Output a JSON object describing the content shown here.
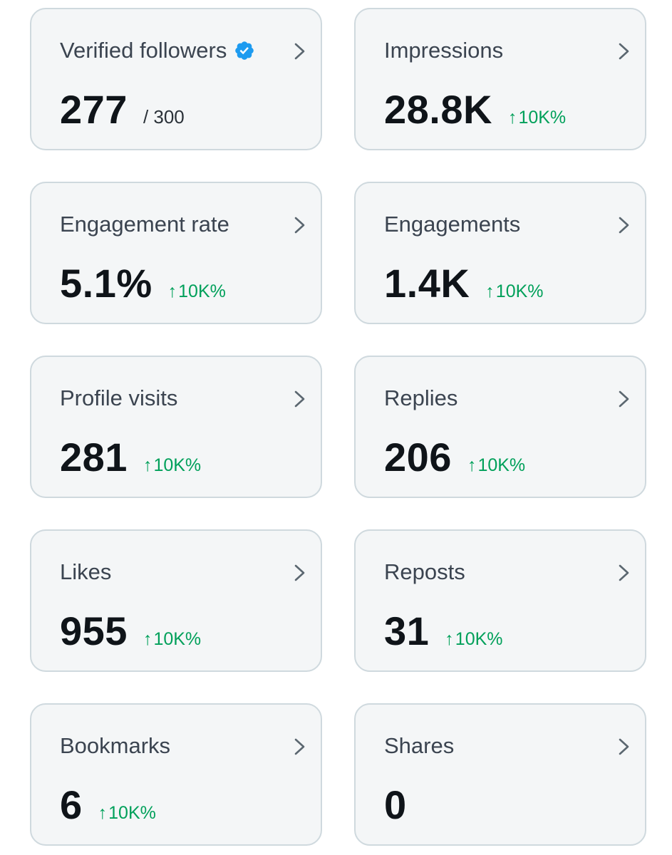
{
  "colors": {
    "card_background": "#f4f6f7",
    "card_border": "#cfd9de",
    "title_text": "#3b4450",
    "value_text": "#0f1419",
    "delta_positive": "#00a05a",
    "verified_badge": "#1d9bf0",
    "chevron": "#5b6770"
  },
  "metrics": [
    {
      "title": "Verified followers",
      "value": "277",
      "sub_total": "/ 300",
      "delta": "",
      "has_verified_badge": true
    },
    {
      "title": "Impressions",
      "value": "28.8K",
      "sub_total": "",
      "delta": "10K%",
      "has_verified_badge": false
    },
    {
      "title": "Engagement rate",
      "value": "5.1%",
      "sub_total": "",
      "delta": "10K%",
      "has_verified_badge": false
    },
    {
      "title": "Engagements",
      "value": "1.4K",
      "sub_total": "",
      "delta": "10K%",
      "has_verified_badge": false
    },
    {
      "title": "Profile visits",
      "value": "281",
      "sub_total": "",
      "delta": "10K%",
      "has_verified_badge": false
    },
    {
      "title": "Replies",
      "value": "206",
      "sub_total": "",
      "delta": "10K%",
      "has_verified_badge": false
    },
    {
      "title": "Likes",
      "value": "955",
      "sub_total": "",
      "delta": "10K%",
      "has_verified_badge": false
    },
    {
      "title": "Reposts",
      "value": "31",
      "sub_total": "",
      "delta": "10K%",
      "has_verified_badge": false
    },
    {
      "title": "Bookmarks",
      "value": "6",
      "sub_total": "",
      "delta": "10K%",
      "has_verified_badge": false
    },
    {
      "title": "Shares",
      "value": "0",
      "sub_total": "",
      "delta": "",
      "has_verified_badge": false
    }
  ],
  "icons": {
    "verified": "verified-badge-icon",
    "chevron": "chevron-right-icon",
    "delta_arrow": "arrow-up-icon",
    "delta_arrow_glyph": "↑"
  }
}
